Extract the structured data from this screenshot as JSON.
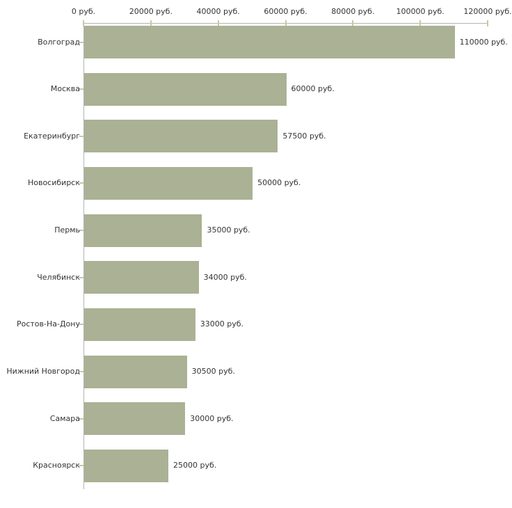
{
  "chart_data": {
    "type": "bar",
    "orientation": "horizontal",
    "title": "",
    "xlabel": "",
    "ylabel": "",
    "xlim": [
      0,
      120000
    ],
    "grid": false,
    "legend": false,
    "categories": [
      "Волгоград",
      "Москва",
      "Екатеринбург",
      "Новосибирск",
      "Пермь",
      "Челябинск",
      "Ростов-На-Дону",
      "Нижний Новгород",
      "Самара",
      "Красноярск"
    ],
    "values": [
      110000,
      60000,
      57500,
      50000,
      35000,
      34000,
      33000,
      30500,
      30000,
      25000
    ],
    "value_labels": [
      "110000 руб.",
      "60000 руб.",
      "57500 руб.",
      "50000 руб.",
      "35000 руб.",
      "34000 руб.",
      "33000 руб.",
      "30500 руб.",
      "30000 руб.",
      "25000 руб."
    ],
    "x_ticks": [
      0,
      20000,
      40000,
      60000,
      80000,
      100000,
      120000
    ],
    "x_tick_labels": [
      "0 руб.",
      "20000 руб.",
      "40000 руб.",
      "60000 руб.",
      "80000 руб.",
      "100000 руб.",
      "120000 руб."
    ],
    "colors": {
      "bar": "#aab194",
      "axis_line": "#b3b3b3",
      "tick": "#c6c9a4",
      "text": "#333333",
      "background": "#ffffff"
    }
  }
}
